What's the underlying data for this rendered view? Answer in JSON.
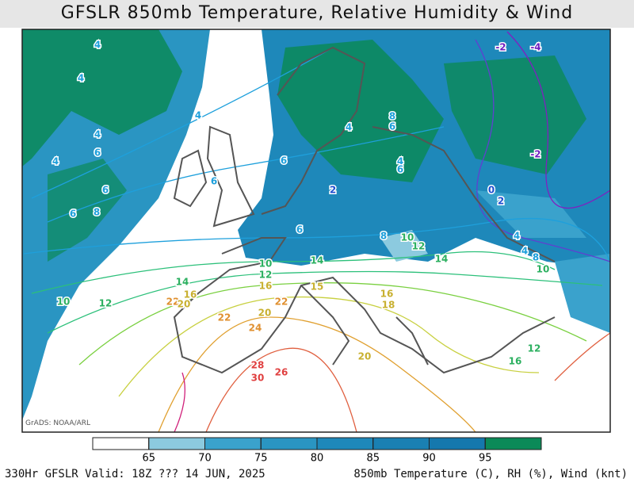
{
  "title": "GFSLR 850mb Temperature, Relative Humidity & Wind",
  "credit": "GrADS: NOAA/ARL",
  "footer_left": "330Hr GFSLR Valid: 18Z ??? 14 JUN, 2025",
  "footer_right": "850mb Temperature (C), RH (%), Wind (knt)",
  "colorbar": {
    "ticks": [
      65,
      70,
      75,
      80,
      85,
      90,
      95
    ],
    "colors": [
      "#ffffff",
      "#8ccadf",
      "#3aa2cc",
      "#2a95c2",
      "#1e88ba",
      "#1a80b3",
      "#1578ad",
      "#0b8a58"
    ]
  },
  "contour_labels": [
    "4",
    "4",
    "4",
    "4",
    "6",
    "4",
    "6",
    "6",
    "8",
    "6",
    "6",
    "4",
    "8",
    "6",
    "4",
    "6",
    "2",
    "6",
    "8",
    "10",
    "12",
    "14",
    "14",
    "10",
    "12",
    "16",
    "15",
    "14",
    "10",
    "12",
    "22",
    "20",
    "16",
    "22",
    "20",
    "22",
    "24",
    "16",
    "18",
    "28",
    "30",
    "26",
    "20",
    "-2",
    "-4",
    "-2",
    "0",
    "2",
    "4",
    "4",
    "8",
    "10",
    "12",
    "16"
  ]
}
